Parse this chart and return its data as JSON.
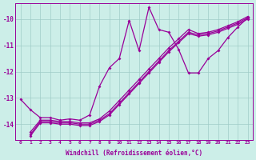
{
  "xlabel": "Windchill (Refroidissement éolien,°C)",
  "ylabel": "",
  "bg_color": "#cceee8",
  "grid_color": "#a0ccc8",
  "line_color": "#990099",
  "xlim": [
    -0.5,
    23.5
  ],
  "ylim": [
    -14.6,
    -9.4
  ],
  "yticks": [
    -14,
    -13,
    -12,
    -11,
    -10
  ],
  "xticks": [
    0,
    1,
    2,
    3,
    4,
    5,
    6,
    7,
    8,
    9,
    10,
    11,
    12,
    13,
    14,
    15,
    16,
    17,
    18,
    19,
    20,
    21,
    22,
    23
  ],
  "line_zigzag_x": [
    0,
    1,
    2,
    3,
    4,
    5,
    6,
    7,
    8,
    9,
    10,
    11,
    12,
    13,
    14,
    15,
    16,
    17,
    18,
    19,
    20,
    21,
    22,
    23
  ],
  "line_zigzag_y": [
    -13.05,
    -13.45,
    -13.75,
    -13.75,
    -13.85,
    -13.8,
    -13.85,
    -13.65,
    -12.55,
    -11.85,
    -11.5,
    -10.05,
    -11.2,
    -9.55,
    -10.4,
    -10.5,
    -11.15,
    -12.05,
    -12.05,
    -11.5,
    -11.2,
    -10.7,
    -10.3,
    -9.95
  ],
  "line_reg1_x": [
    1,
    2,
    3,
    4,
    5,
    6,
    7,
    8,
    9,
    10,
    11,
    12,
    13,
    14,
    15,
    16,
    17,
    18,
    19,
    20,
    21,
    22,
    23
  ],
  "line_reg1_y": [
    -14.3,
    -13.85,
    -13.85,
    -13.9,
    -13.9,
    -13.95,
    -13.95,
    -13.8,
    -13.5,
    -13.1,
    -12.7,
    -12.3,
    -11.9,
    -11.5,
    -11.1,
    -10.75,
    -10.4,
    -10.55,
    -10.5,
    -10.4,
    -10.25,
    -10.1,
    -9.9
  ],
  "line_reg2_x": [
    1,
    2,
    3,
    4,
    5,
    6,
    7,
    8,
    9,
    10,
    11,
    12,
    13,
    14,
    15,
    16,
    17,
    18,
    19,
    20,
    21,
    22,
    23
  ],
  "line_reg2_y": [
    -14.4,
    -13.9,
    -13.9,
    -13.95,
    -13.95,
    -14.0,
    -14.0,
    -13.85,
    -13.6,
    -13.2,
    -12.8,
    -12.4,
    -12.0,
    -11.6,
    -11.2,
    -10.85,
    -10.5,
    -10.6,
    -10.55,
    -10.45,
    -10.3,
    -10.15,
    -9.95
  ],
  "line_reg3_x": [
    1,
    2,
    3,
    4,
    5,
    6,
    7,
    8,
    9,
    10,
    11,
    12,
    13,
    14,
    15,
    16,
    17,
    18,
    19,
    20,
    21,
    22,
    23
  ],
  "line_reg3_y": [
    -14.45,
    -13.95,
    -13.95,
    -14.0,
    -14.0,
    -14.05,
    -14.05,
    -13.9,
    -13.65,
    -13.25,
    -12.85,
    -12.45,
    -12.05,
    -11.65,
    -11.25,
    -10.9,
    -10.55,
    -10.65,
    -10.6,
    -10.5,
    -10.35,
    -10.2,
    -10.0
  ]
}
